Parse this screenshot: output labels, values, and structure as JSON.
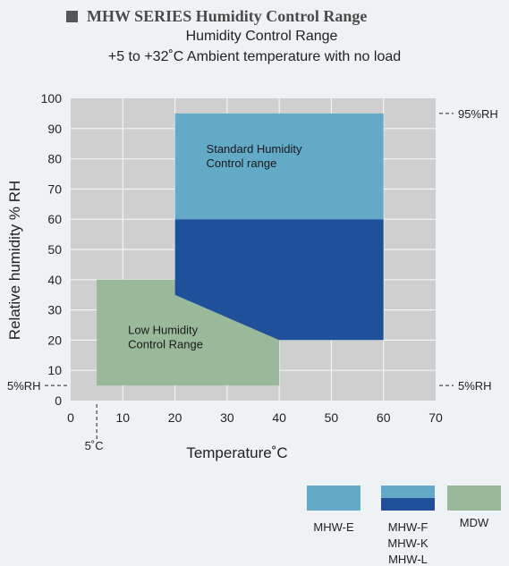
{
  "header": {
    "title": "MHW SERIES Humidity Control Range",
    "subtitle_line1": "Humidity Control Range",
    "subtitle_line2": "+5 to +32˚C   Ambient temperature with no load"
  },
  "chart_data": {
    "type": "area",
    "xlabel": "Temperature˚C",
    "ylabel": "Relative humidity % RH",
    "xlim": [
      0,
      70
    ],
    "ylim": [
      0,
      100
    ],
    "x_ticks": [
      0,
      10,
      20,
      30,
      40,
      50,
      60,
      70
    ],
    "y_ticks": [
      0,
      10,
      20,
      30,
      40,
      50,
      60,
      70,
      80,
      90,
      100
    ],
    "grid": true,
    "regions": [
      {
        "name": "MDW",
        "color": "#9ab89a",
        "polygon": [
          [
            5,
            5
          ],
          [
            5,
            40
          ],
          [
            20,
            40
          ],
          [
            20,
            35
          ],
          [
            40,
            20
          ],
          [
            40,
            5
          ]
        ]
      },
      {
        "name": "MHW-E",
        "color": "#63a9c8",
        "polygon": [
          [
            20,
            60
          ],
          [
            20,
            95
          ],
          [
            60,
            95
          ],
          [
            60,
            60
          ]
        ]
      },
      {
        "name": "MHW-F MHW-K MHW-L",
        "color": "#1f509a",
        "polygon": [
          [
            20,
            35
          ],
          [
            20,
            60
          ],
          [
            60,
            60
          ],
          [
            60,
            20
          ],
          [
            40,
            20
          ]
        ]
      }
    ],
    "annotations": [
      {
        "text_lines": [
          "Standard Humidity",
          "Control range"
        ],
        "x": 26,
        "y": 82
      },
      {
        "text_lines": [
          "Low Humidity",
          "Control Range"
        ],
        "x": 11,
        "y": 22
      }
    ],
    "reference_lines": [
      {
        "label": "95%RH",
        "axis": "y",
        "value": 95,
        "side": "right"
      },
      {
        "label": "5%RH",
        "axis": "y",
        "value": 5,
        "side": "right"
      },
      {
        "label": "5%RH",
        "axis": "y",
        "value": 5,
        "side": "left"
      },
      {
        "label": "5˚C",
        "axis": "x",
        "value": 5,
        "side": "bottom"
      }
    ]
  },
  "legend": {
    "placement": "bottom-right",
    "items": [
      {
        "colors": [
          "#63a9c8"
        ],
        "label_lines": [
          "MHW-E"
        ]
      },
      {
        "colors": [
          "#63a9c8",
          "#1f509a"
        ],
        "label_lines": [
          "MHW-F",
          "MHW-K",
          "MHW-L"
        ]
      },
      {
        "colors": [
          "#9ab89a"
        ],
        "label_lines": [
          "MDW"
        ]
      }
    ]
  }
}
